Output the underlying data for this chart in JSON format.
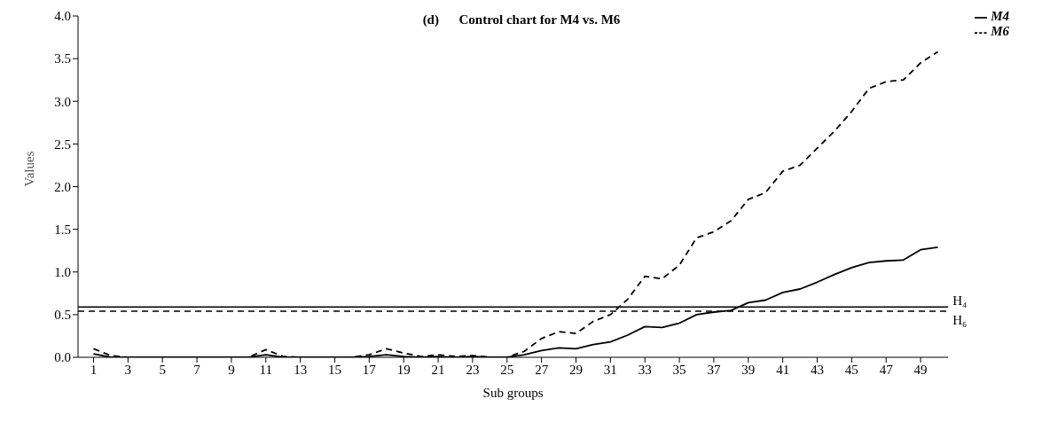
{
  "chart_data": {
    "type": "line",
    "title": "(d)      Control chart for M4 vs. M6",
    "xlabel": "Sub groups",
    "ylabel": "Values",
    "x": [
      1,
      2,
      3,
      4,
      5,
      6,
      7,
      8,
      9,
      10,
      11,
      12,
      13,
      14,
      15,
      16,
      17,
      18,
      19,
      20,
      21,
      22,
      23,
      24,
      25,
      26,
      27,
      28,
      29,
      30,
      31,
      32,
      33,
      34,
      35,
      36,
      37,
      38,
      39,
      40,
      41,
      42,
      43,
      44,
      45,
      46,
      47,
      48,
      49,
      50
    ],
    "series": [
      {
        "name": "M4",
        "color": "#000000",
        "line_style": "solid",
        "values": [
          0.04,
          0,
          0,
          0,
          0,
          0,
          0,
          0,
          0,
          0,
          0.03,
          0,
          0,
          0,
          0,
          0,
          0.01,
          0.03,
          0.01,
          0,
          0.01,
          0,
          0.01,
          0,
          0,
          0.03,
          0.08,
          0.11,
          0.1,
          0.15,
          0.18,
          0.26,
          0.36,
          0.35,
          0.4,
          0.5,
          0.53,
          0.55,
          0.64,
          0.67,
          0.76,
          0.8,
          0.88,
          0.97,
          1.05,
          1.11,
          1.13,
          1.14,
          1.26,
          1.29
        ]
      },
      {
        "name": "M6",
        "color": "#000000",
        "line_style": "dashed",
        "values": [
          0.1,
          0.02,
          0,
          0,
          0,
          0,
          0,
          0,
          0,
          0,
          0.09,
          0.01,
          0,
          0,
          0,
          0,
          0.03,
          0.1,
          0.05,
          0.01,
          0.03,
          0.01,
          0.02,
          0,
          0,
          0.07,
          0.22,
          0.3,
          0.28,
          0.42,
          0.5,
          0.68,
          0.95,
          0.92,
          1.08,
          1.4,
          1.47,
          1.6,
          1.85,
          1.93,
          2.18,
          2.25,
          2.45,
          2.65,
          2.88,
          3.15,
          3.23,
          3.25,
          3.45,
          3.58
        ]
      }
    ],
    "xlim": [
      0.1,
      50.6
    ],
    "xticks": [
      1,
      3,
      5,
      7,
      9,
      11,
      13,
      15,
      17,
      19,
      21,
      23,
      25,
      27,
      29,
      31,
      33,
      35,
      37,
      39,
      41,
      43,
      45,
      47,
      49
    ],
    "ylim": [
      0,
      4
    ],
    "yticks": [
      {
        "value": 0,
        "label": "0.0"
      },
      {
        "value": 0.5,
        "label": "0.5"
      },
      {
        "value": 1,
        "label": "1.0"
      },
      {
        "value": 1.5,
        "label": "1.5"
      },
      {
        "value": 2,
        "label": "2.0"
      },
      {
        "value": 2.5,
        "label": "2.5"
      },
      {
        "value": 3,
        "label": "3.0"
      },
      {
        "value": 3.5,
        "label": "3.5"
      },
      {
        "value": 4,
        "label": "4.0"
      }
    ],
    "ref_lines": [
      {
        "axis": "y",
        "value": 0.59,
        "label": "H₄",
        "color": "#000000",
        "line_style": "solid"
      },
      {
        "axis": "y",
        "value": 0.54,
        "label": "H₆",
        "color": "#000000",
        "line_style": "dashed"
      }
    ],
    "grid": false,
    "legend": "top right",
    "marker": "none"
  }
}
